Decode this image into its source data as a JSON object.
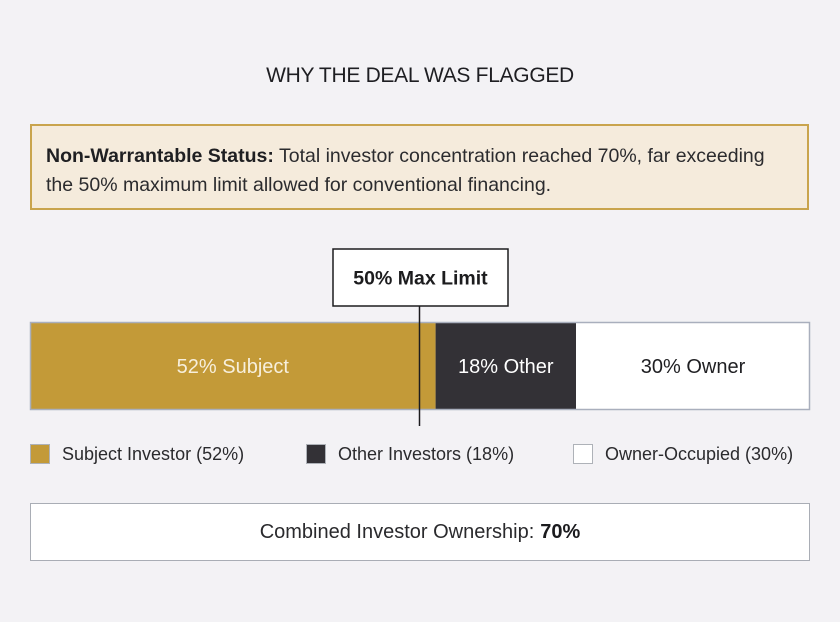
{
  "title": "WHY THE DEAL WAS FLAGGED",
  "callout": {
    "label": "Non-Warrantable Status:",
    "text": "Total investor concentration reached 70%, far exceeding the 50% maximum limit allowed for conventional financing."
  },
  "chart_data": {
    "type": "bar",
    "orientation": "horizontal-stacked",
    "unit": "%",
    "xlim": [
      0,
      100
    ],
    "segments": [
      {
        "label": "52% Subject",
        "value": 52,
        "color": "#c39a38",
        "text_color": "#f7efdc"
      },
      {
        "label": "18% Other",
        "value": 18,
        "color": "#333136",
        "text_color": "#ffffff"
      },
      {
        "label": "30% Owner",
        "value": 30,
        "color": "#ffffff",
        "text_color": "#1f1f22"
      }
    ],
    "threshold": {
      "value": 50,
      "label": "50% Max Limit"
    },
    "legend": [
      {
        "label": "Subject Investor (52%)",
        "color": "#c39a38"
      },
      {
        "label": "Other Investors (18%)",
        "color": "#333136"
      },
      {
        "label": "Owner-Occupied (30%)",
        "color": "#ffffff"
      }
    ]
  },
  "summary": {
    "label": "Combined Investor Ownership:",
    "value": "70%"
  }
}
